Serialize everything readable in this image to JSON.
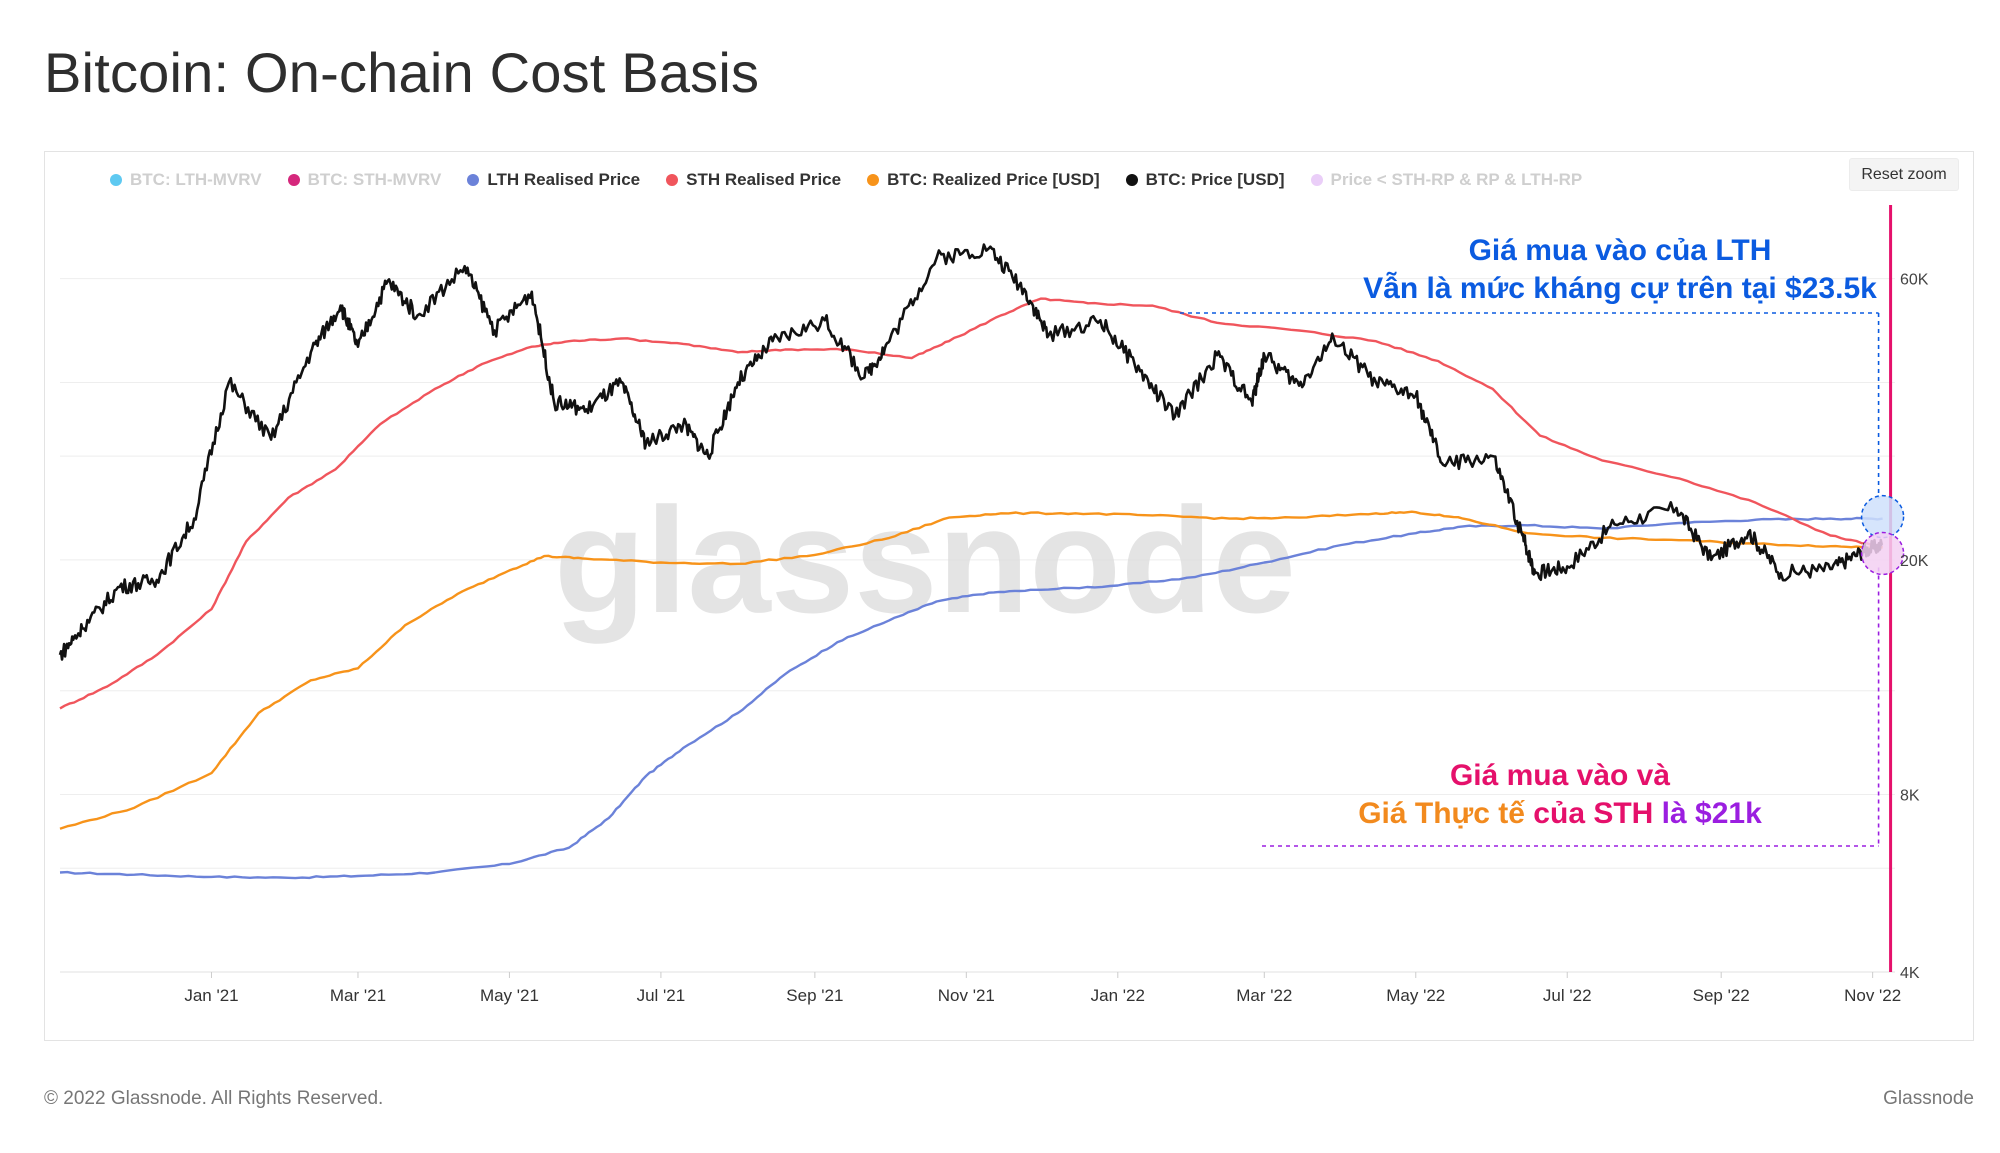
{
  "page": {
    "title": "Bitcoin: On-chain Cost Basis"
  },
  "toolbar": {
    "reset_zoom": "Reset zoom"
  },
  "legend": [
    {
      "label": "BTC: LTH-MVRV",
      "color": "#4cc3f0",
      "active": false
    },
    {
      "label": "BTC: STH-MVRV",
      "color": "#d0106e",
      "active": false
    },
    {
      "label": "LTH Realised Price",
      "color": "#6b82d9",
      "active": true
    },
    {
      "label": "STH Realised Price",
      "color": "#f0555c",
      "active": true
    },
    {
      "label": "BTC: Realized Price [USD]",
      "color": "#f7931a",
      "active": true
    },
    {
      "label": "BTC: Price [USD]",
      "color": "#111111",
      "active": true
    },
    {
      "label": "Price < STH-RP & RP & LTH-RP",
      "color": "#e8c9f7",
      "active": false
    }
  ],
  "annotations": {
    "lth_line1": "Giá mua vào của LTH",
    "lth_line2": "Vẫn là mức kháng cự trên tại $23.5k",
    "sth_line1": "Giá mua vào và",
    "sth_part1": "Giá Thực tế",
    "sth_part2": " của STH ",
    "sth_part3": "là ",
    "sth_part4": "$21k"
  },
  "colors": {
    "lth_blue": "#0b5be0",
    "sth_pink": "#e5106b",
    "orange": "#f28a1e",
    "purple": "#9b1ee0",
    "vline": "#e5106b"
  },
  "watermark": "glassnode",
  "footer": {
    "copyright": "© 2022 Glassnode. All Rights Reserved.",
    "brand": "Glassnode"
  },
  "chart_data": {
    "type": "line",
    "title": "Bitcoin: On-chain Cost Basis",
    "y_scale": "log",
    "ylim": [
      4000,
      80000
    ],
    "y_ticks": [
      {
        "value": 4000,
        "label": "4K"
      },
      {
        "value": 8000,
        "label": "8K"
      },
      {
        "value": 20000,
        "label": "20K"
      },
      {
        "value": 60000,
        "label": "60K"
      }
    ],
    "xlim": [
      "2020-11-01",
      "2022-11-10"
    ],
    "x_ticks": [
      {
        "date": "2021-01-01",
        "label": "Jan '21"
      },
      {
        "date": "2021-03-01",
        "label": "Mar '21"
      },
      {
        "date": "2021-05-01",
        "label": "May '21"
      },
      {
        "date": "2021-07-01",
        "label": "Jul '21"
      },
      {
        "date": "2021-09-01",
        "label": "Sep '21"
      },
      {
        "date": "2021-11-01",
        "label": "Nov '21"
      },
      {
        "date": "2022-01-01",
        "label": "Jan '22"
      },
      {
        "date": "2022-03-01",
        "label": "Mar '22"
      },
      {
        "date": "2022-05-01",
        "label": "May '22"
      },
      {
        "date": "2022-07-01",
        "label": "Jul '22"
      },
      {
        "date": "2022-09-01",
        "label": "Sep '22"
      },
      {
        "date": "2022-11-01",
        "label": "Nov '22"
      }
    ],
    "series": [
      {
        "name": "LTH Realised Price",
        "color": "#6b82d9",
        "points": [
          [
            "2020-11-01",
            5900
          ],
          [
            "2020-12-01",
            5850
          ],
          [
            "2021-01-01",
            5800
          ],
          [
            "2021-02-01",
            5780
          ],
          [
            "2021-03-01",
            5820
          ],
          [
            "2021-04-01",
            5900
          ],
          [
            "2021-05-01",
            6100
          ],
          [
            "2021-05-25",
            6500
          ],
          [
            "2021-06-10",
            7300
          ],
          [
            "2021-06-25",
            8600
          ],
          [
            "2021-07-10",
            9600
          ],
          [
            "2021-08-01",
            11000
          ],
          [
            "2021-08-20",
            12800
          ],
          [
            "2021-09-10",
            14500
          ],
          [
            "2021-10-01",
            15800
          ],
          [
            "2021-10-20",
            17000
          ],
          [
            "2021-11-10",
            17600
          ],
          [
            "2021-12-01",
            17800
          ],
          [
            "2022-01-01",
            18100
          ],
          [
            "2022-02-01",
            18700
          ],
          [
            "2022-03-01",
            19800
          ],
          [
            "2022-04-01",
            21200
          ],
          [
            "2022-05-01",
            22200
          ],
          [
            "2022-05-20",
            22800
          ],
          [
            "2022-06-15",
            22900
          ],
          [
            "2022-07-15",
            22600
          ],
          [
            "2022-08-15",
            23100
          ],
          [
            "2022-09-15",
            23400
          ],
          [
            "2022-10-15",
            23500
          ],
          [
            "2022-11-05",
            23500
          ]
        ]
      },
      {
        "name": "STH Realised Price",
        "color": "#f0555c",
        "points": [
          [
            "2020-11-01",
            11200
          ],
          [
            "2020-11-20",
            12200
          ],
          [
            "2020-12-10",
            13800
          ],
          [
            "2021-01-01",
            16500
          ],
          [
            "2021-01-15",
            21500
          ],
          [
            "2021-02-01",
            25500
          ],
          [
            "2021-02-20",
            28500
          ],
          [
            "2021-03-10",
            34000
          ],
          [
            "2021-04-01",
            39000
          ],
          [
            "2021-04-20",
            43000
          ],
          [
            "2021-05-10",
            46000
          ],
          [
            "2021-05-25",
            47000
          ],
          [
            "2021-06-15",
            47500
          ],
          [
            "2021-07-10",
            46500
          ],
          [
            "2021-08-01",
            45000
          ],
          [
            "2021-08-20",
            45500
          ],
          [
            "2021-09-15",
            45500
          ],
          [
            "2021-10-10",
            44000
          ],
          [
            "2021-10-25",
            47000
          ],
          [
            "2021-11-15",
            52000
          ],
          [
            "2021-12-01",
            55500
          ],
          [
            "2021-12-20",
            54500
          ],
          [
            "2022-01-15",
            54000
          ],
          [
            "2022-02-10",
            50500
          ],
          [
            "2022-03-15",
            49000
          ],
          [
            "2022-04-15",
            47000
          ],
          [
            "2022-05-10",
            43500
          ],
          [
            "2022-06-01",
            39000
          ],
          [
            "2022-06-20",
            32500
          ],
          [
            "2022-07-15",
            29500
          ],
          [
            "2022-08-15",
            27500
          ],
          [
            "2022-09-15",
            25000
          ],
          [
            "2022-10-15",
            22000
          ],
          [
            "2022-11-05",
            21000
          ]
        ]
      },
      {
        "name": "BTC: Realized Price [USD]",
        "color": "#f7931a",
        "points": [
          [
            "2020-11-01",
            7000
          ],
          [
            "2020-12-01",
            7600
          ],
          [
            "2021-01-01",
            8700
          ],
          [
            "2021-01-20",
            11000
          ],
          [
            "2021-02-10",
            12500
          ],
          [
            "2021-03-01",
            13100
          ],
          [
            "2021-03-20",
            15500
          ],
          [
            "2021-04-10",
            17500
          ],
          [
            "2021-05-01",
            19200
          ],
          [
            "2021-05-15",
            20300
          ],
          [
            "2021-06-01",
            20100
          ],
          [
            "2021-07-01",
            19800
          ],
          [
            "2021-08-01",
            19700
          ],
          [
            "2021-09-01",
            20400
          ],
          [
            "2021-10-01",
            21800
          ],
          [
            "2021-10-25",
            23600
          ],
          [
            "2021-11-15",
            24000
          ],
          [
            "2021-12-15",
            24000
          ],
          [
            "2022-01-15",
            23800
          ],
          [
            "2022-02-15",
            23500
          ],
          [
            "2022-03-15",
            23600
          ],
          [
            "2022-04-15",
            24000
          ],
          [
            "2022-05-01",
            24100
          ],
          [
            "2022-05-20",
            23500
          ],
          [
            "2022-06-15",
            22200
          ],
          [
            "2022-07-15",
            21800
          ],
          [
            "2022-08-15",
            21600
          ],
          [
            "2022-09-15",
            21300
          ],
          [
            "2022-10-15",
            21100
          ],
          [
            "2022-11-05",
            21000
          ]
        ]
      },
      {
        "name": "BTC: Price [USD]",
        "color": "#111111",
        "points": [
          [
            "2020-11-01",
            13800
          ],
          [
            "2020-11-10",
            15300
          ],
          [
            "2020-11-25",
            18000
          ],
          [
            "2020-12-10",
            18500
          ],
          [
            "2020-12-25",
            23500
          ],
          [
            "2021-01-08",
            40000
          ],
          [
            "2021-01-25",
            32000
          ],
          [
            "2021-02-10",
            45000
          ],
          [
            "2021-02-22",
            54000
          ],
          [
            "2021-03-01",
            46000
          ],
          [
            "2021-03-13",
            59500
          ],
          [
            "2021-03-25",
            52000
          ],
          [
            "2021-04-13",
            63000
          ],
          [
            "2021-04-25",
            49000
          ],
          [
            "2021-05-10",
            57000
          ],
          [
            "2021-05-19",
            37000
          ],
          [
            "2021-06-01",
            36000
          ],
          [
            "2021-06-15",
            40000
          ],
          [
            "2021-06-25",
            31500
          ],
          [
            "2021-07-10",
            34000
          ],
          [
            "2021-07-20",
            30000
          ],
          [
            "2021-08-01",
            40000
          ],
          [
            "2021-08-15",
            47000
          ],
          [
            "2021-09-05",
            51000
          ],
          [
            "2021-09-21",
            40800
          ],
          [
            "2021-10-01",
            47000
          ],
          [
            "2021-10-20",
            65000
          ],
          [
            "2021-11-10",
            67500
          ],
          [
            "2021-11-25",
            57000
          ],
          [
            "2021-12-04",
            48000
          ],
          [
            "2021-12-25",
            51000
          ],
          [
            "2022-01-10",
            41800
          ],
          [
            "2022-01-24",
            35000
          ],
          [
            "2022-02-10",
            44500
          ],
          [
            "2022-02-24",
            37000
          ],
          [
            "2022-03-01",
            44500
          ],
          [
            "2022-03-15",
            39500
          ],
          [
            "2022-03-29",
            47500
          ],
          [
            "2022-04-15",
            40000
          ],
          [
            "2022-05-01",
            38000
          ],
          [
            "2022-05-12",
            29000
          ],
          [
            "2022-06-01",
            30000
          ],
          [
            "2022-06-13",
            22000
          ],
          [
            "2022-06-18",
            19000
          ],
          [
            "2022-07-01",
            19500
          ],
          [
            "2022-07-20",
            23000
          ],
          [
            "2022-08-14",
            24500
          ],
          [
            "2022-08-28",
            20000
          ],
          [
            "2022-09-12",
            22300
          ],
          [
            "2022-09-25",
            19000
          ],
          [
            "2022-10-15",
            19300
          ],
          [
            "2022-10-28",
            20700
          ],
          [
            "2022-11-05",
            21200
          ]
        ]
      }
    ],
    "reference_levels": [
      {
        "name": "LTH cost basis",
        "value": 23500
      },
      {
        "name": "STH cost basis",
        "value": 21000
      }
    ]
  }
}
